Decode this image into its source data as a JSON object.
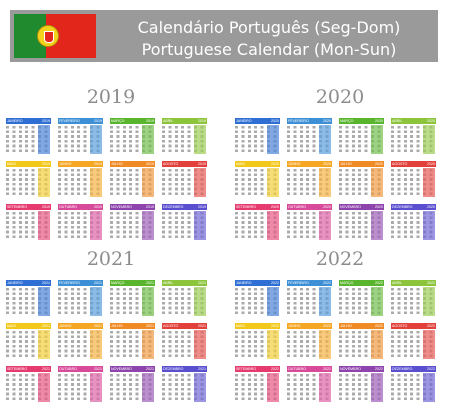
{
  "header": {
    "title_pt": "Calendário Português (Seg-Dom)",
    "title_en": "Portuguese Calendar (Mon-Sun)"
  },
  "colors": {
    "month_headers": [
      "#2f6fd3",
      "#3d8fd6",
      "#5ab52e",
      "#8cc43b",
      "#f2c81b",
      "#f5a623",
      "#f08a24",
      "#e2403a",
      "#e63b6f",
      "#d84a9a",
      "#8e44ad",
      "#5a4fcf"
    ]
  },
  "years": [
    {
      "year": "2019",
      "months": [
        {
          "name": "JANEIRO",
          "year": "2019"
        },
        {
          "name": "FEVEREIRO",
          "year": "2019"
        },
        {
          "name": "MARÇO",
          "year": "2019"
        },
        {
          "name": "ABRIL",
          "year": "2019"
        },
        {
          "name": "MAIO",
          "year": "2019"
        },
        {
          "name": "JUNHO",
          "year": "2019"
        },
        {
          "name": "JULHO",
          "year": "2019"
        },
        {
          "name": "AGOSTO",
          "year": "2019"
        },
        {
          "name": "SETEMBRO",
          "year": "2019"
        },
        {
          "name": "OUTUBRO",
          "year": "2019"
        },
        {
          "name": "NOVEMBRO",
          "year": "2019"
        },
        {
          "name": "DEZEMBRO",
          "year": "2019"
        }
      ]
    },
    {
      "year": "2020",
      "months": [
        {
          "name": "JANEIRO",
          "year": "2020"
        },
        {
          "name": "FEVEREIRO",
          "year": "2020"
        },
        {
          "name": "MARÇO",
          "year": "2020"
        },
        {
          "name": "ABRIL",
          "year": "2020"
        },
        {
          "name": "MAIO",
          "year": "2020"
        },
        {
          "name": "JUNHO",
          "year": "2020"
        },
        {
          "name": "JULHO",
          "year": "2020"
        },
        {
          "name": "AGOSTO",
          "year": "2020"
        },
        {
          "name": "SETEMBRO",
          "year": "2020"
        },
        {
          "name": "OUTUBRO",
          "year": "2020"
        },
        {
          "name": "NOVEMBRO",
          "year": "2020"
        },
        {
          "name": "DEZEMBRO",
          "year": "2020"
        }
      ]
    },
    {
      "year": "2021",
      "months": [
        {
          "name": "JANEIRO",
          "year": "2021"
        },
        {
          "name": "FEVEREIRO",
          "year": "2021"
        },
        {
          "name": "MARÇO",
          "year": "2021"
        },
        {
          "name": "ABRIL",
          "year": "2021"
        },
        {
          "name": "MAIO",
          "year": "2021"
        },
        {
          "name": "JUNHO",
          "year": "2021"
        },
        {
          "name": "JULHO",
          "year": "2021"
        },
        {
          "name": "AGOSTO",
          "year": "2021"
        },
        {
          "name": "SETEMBRO",
          "year": "2021"
        },
        {
          "name": "OUTUBRO",
          "year": "2021"
        },
        {
          "name": "NOVEMBRO",
          "year": "2021"
        },
        {
          "name": "DEZEMBRO",
          "year": "2021"
        }
      ]
    },
    {
      "year": "2022",
      "months": [
        {
          "name": "JANEIRO",
          "year": "2022"
        },
        {
          "name": "FEVEREIRO",
          "year": "2022"
        },
        {
          "name": "MARÇO",
          "year": "2022"
        },
        {
          "name": "ABRIL",
          "year": "2022"
        },
        {
          "name": "MAIO",
          "year": "2022"
        },
        {
          "name": "JUNHO",
          "year": "2022"
        },
        {
          "name": "JULHO",
          "year": "2022"
        },
        {
          "name": "AGOSTO",
          "year": "2022"
        },
        {
          "name": "SETEMBRO",
          "year": "2022"
        },
        {
          "name": "OUTUBRO",
          "year": "2022"
        },
        {
          "name": "NOVEMBRO",
          "year": "2022"
        },
        {
          "name": "DEZEMBRO",
          "year": "2022"
        }
      ]
    }
  ]
}
